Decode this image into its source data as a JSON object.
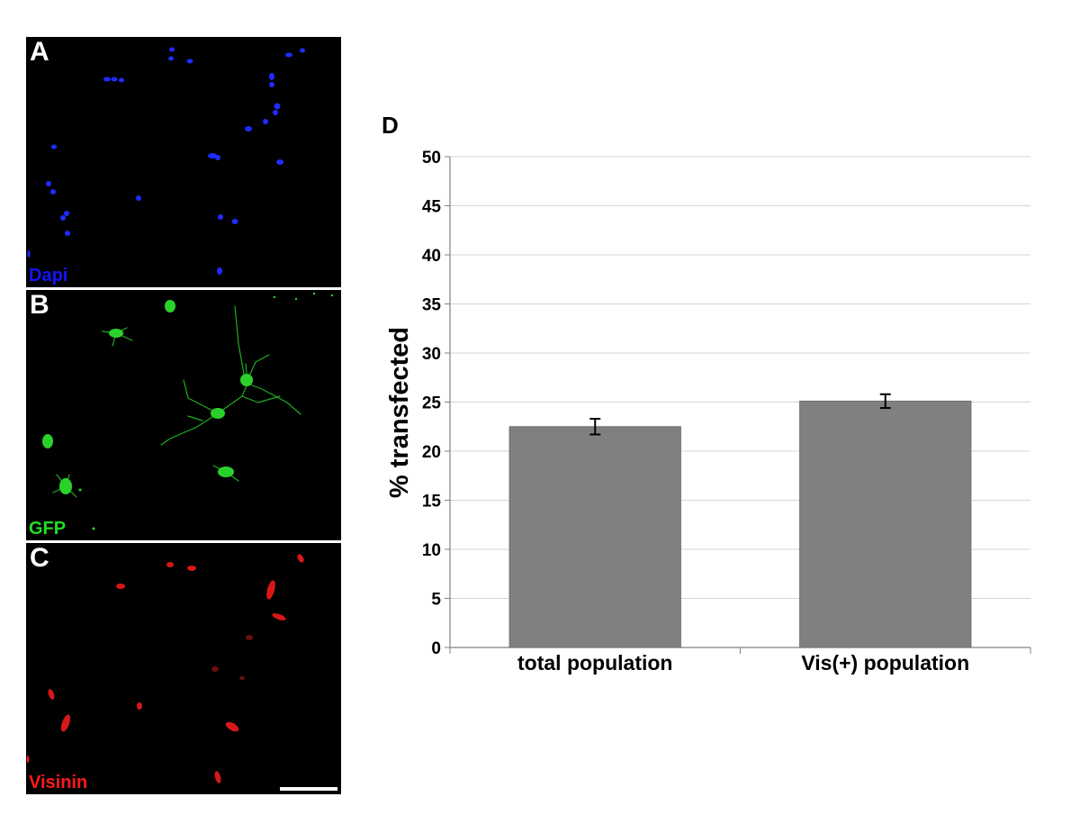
{
  "panels": [
    {
      "letter": "A",
      "label": "Dapi",
      "label_color": "#1414ff"
    },
    {
      "letter": "B",
      "label": "GFP",
      "label_color": "#22dd22"
    },
    {
      "letter": "C",
      "label": "Visinin",
      "label_color": "#ff1a1a"
    }
  ],
  "chart_letter": "D",
  "chart_data": {
    "type": "bar",
    "categories": [
      "total population",
      "Vis(+) population"
    ],
    "values": [
      22.5,
      25.1
    ],
    "error": [
      0.8,
      0.7
    ],
    "ylabel": "% transfected",
    "xlabel": "",
    "ylim": [
      0,
      50
    ],
    "yticks": [
      0,
      5,
      10,
      15,
      20,
      25,
      30,
      35,
      40,
      45,
      50
    ],
    "grid": true,
    "bar_color": "#808080",
    "legend": "none"
  }
}
